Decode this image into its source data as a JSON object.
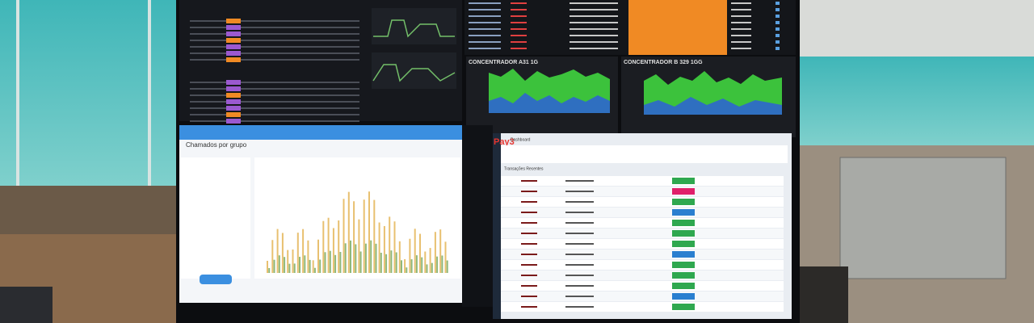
{
  "screens": {
    "concentrator_a_title": "CONCENTRADOR A31 1G",
    "concentrator_b_title": "CONCENTRADOR B 329 1GG",
    "tickets_title": "Chamados por grupo",
    "pay_logo": "Pay3",
    "pay_header": "Dashboard",
    "pay_section": "Transações Recentes"
  }
}
